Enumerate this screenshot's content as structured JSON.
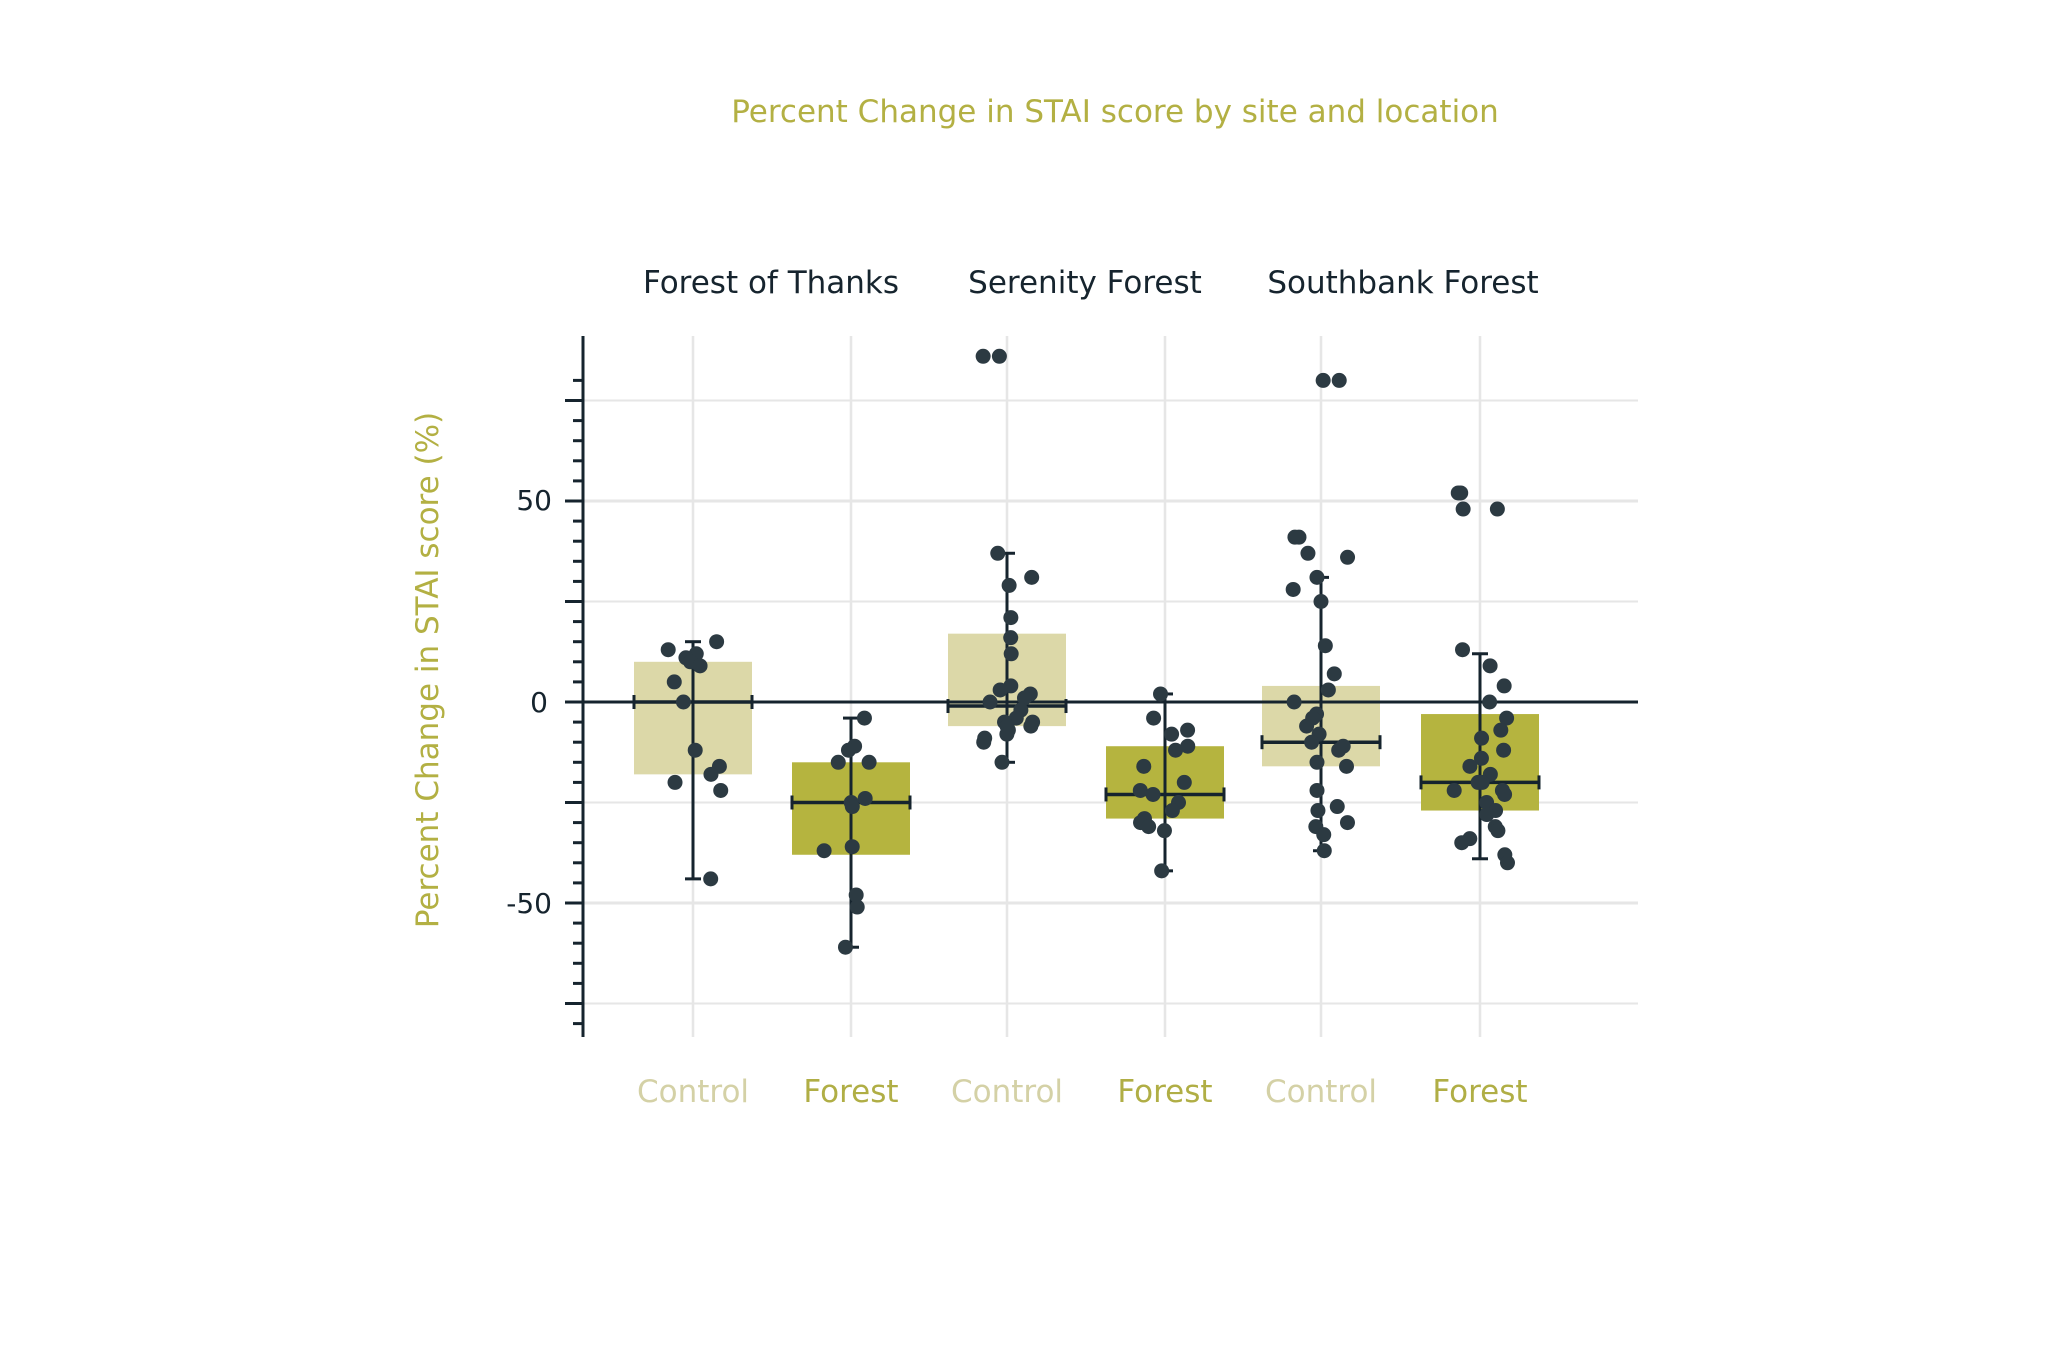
{
  "colors": {
    "title": "#b3b043",
    "axis": "#16242e",
    "grid": "#e6e6e6",
    "control_box": "#dcd8a8",
    "forest_box": "#b5b43f",
    "control_label": "#d4d1a6",
    "forest_label": "#b0ae45",
    "dot": "#2c3a42",
    "background": "#ffffff"
  },
  "chart_data": {
    "type": "boxplot",
    "title": "Percent Change in STAI score by site and location",
    "ylabel": "Percent Change in STAI score (%)",
    "xlabel": "",
    "ylim": [
      -83,
      90
    ],
    "yticks": [
      -50,
      0,
      50
    ],
    "ytick_labels": [
      "-50",
      "0",
      "50"
    ],
    "minor_tick_step": 5,
    "reference_line": 0,
    "sites": [
      "Forest of Thanks",
      "Serenity Forest",
      "Southbank Forest"
    ],
    "groups": [
      {
        "site": "Forest of Thanks",
        "location": "Control",
        "q1": -18,
        "median": 0,
        "q3": 10,
        "whisker_low": -44,
        "whisker_high": 15,
        "points": [
          15,
          13,
          12,
          11,
          10,
          9,
          5,
          0,
          -12,
          -16,
          -18,
          -20,
          -22,
          -44
        ]
      },
      {
        "site": "Forest of Thanks",
        "location": "Forest",
        "q1": -38,
        "median": -25,
        "q3": -15,
        "whisker_low": -61,
        "whisker_high": -4,
        "points": [
          -4,
          -11,
          -12,
          -15,
          -15,
          -24,
          -25,
          -26,
          -36,
          -37,
          -48,
          -51,
          -61
        ]
      },
      {
        "site": "Serenity Forest",
        "location": "Control",
        "q1": -6,
        "median": -1,
        "q3": 17,
        "whisker_low": -15,
        "whisker_high": 37,
        "points": [
          86,
          86,
          37,
          31,
          29,
          21,
          16,
          12,
          4,
          3,
          2,
          1,
          0,
          -2,
          -4,
          -5,
          -5,
          -6,
          -6,
          -7,
          -8,
          -9,
          -10,
          -15
        ]
      },
      {
        "site": "Serenity Forest",
        "location": "Forest",
        "q1": -29,
        "median": -23,
        "q3": -11,
        "whisker_low": -42,
        "whisker_high": 2,
        "points": [
          2,
          -4,
          -7,
          -8,
          -11,
          -12,
          -16,
          -20,
          -22,
          -23,
          -25,
          -27,
          -29,
          -30,
          -31,
          -32,
          -42
        ]
      },
      {
        "site": "Southbank Forest",
        "location": "Control",
        "q1": -16,
        "median": -10,
        "q3": 4,
        "whisker_low": -37,
        "whisker_high": 31,
        "points": [
          80,
          80,
          41,
          41,
          37,
          36,
          31,
          28,
          25,
          14,
          7,
          3,
          0,
          -3,
          -4,
          -6,
          -8,
          -10,
          -11,
          -12,
          -15,
          -16,
          -22,
          -26,
          -27,
          -30,
          -31,
          -33,
          -37
        ]
      },
      {
        "site": "Southbank Forest",
        "location": "Forest",
        "q1": -27,
        "median": -20,
        "q3": -3,
        "whisker_low": -39,
        "whisker_high": 12,
        "points": [
          52,
          52,
          48,
          48,
          13,
          9,
          4,
          0,
          -4,
          -7,
          -9,
          -12,
          -14,
          -16,
          -18,
          -20,
          -20,
          -22,
          -22,
          -23,
          -25,
          -27,
          -28,
          -31,
          -32,
          -34,
          -35,
          -38,
          -40
        ]
      }
    ]
  }
}
